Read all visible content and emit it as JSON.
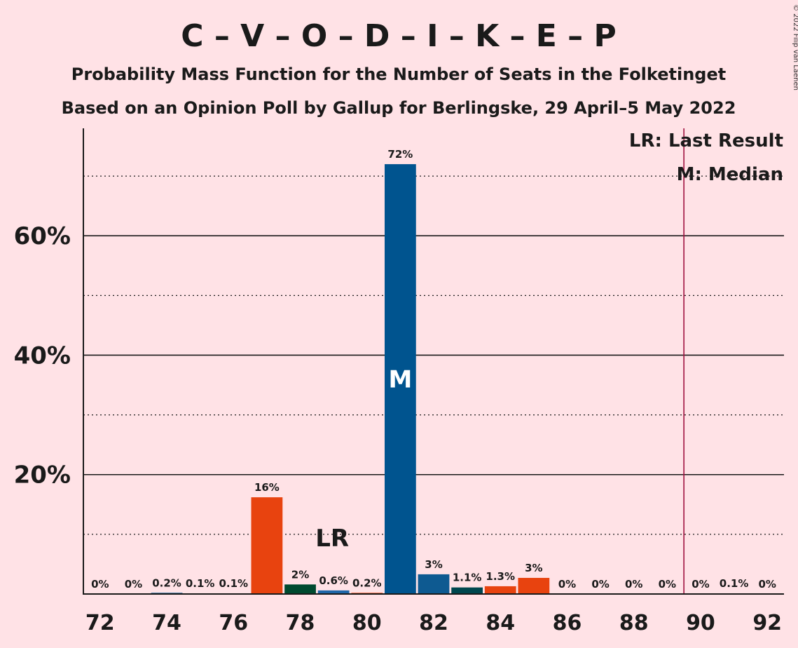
{
  "chart_data": {
    "type": "bar",
    "title": "C – V – O – D – I – K – E – P",
    "subtitle_line1": "Probability Mass Function for the Number of Seats in the Folketinget",
    "subtitle_line2": "Based on an Opinion Poll by Gallup for Berlingske, 29 April–5 May 2022",
    "copyright": "© 2022 Filip van Laenen",
    "x_ticks": [
      "72",
      "74",
      "76",
      "78",
      "80",
      "82",
      "84",
      "86",
      "88",
      "90",
      "92"
    ],
    "y_ticks": [
      "20%",
      "40%",
      "60%"
    ],
    "ylim": [
      0,
      78
    ],
    "xlim": [
      71.5,
      92.5
    ],
    "grid": true,
    "bars": [
      {
        "seats": 72,
        "value": 0,
        "label": "0%",
        "color": "#E8430F"
      },
      {
        "seats": 73,
        "value": 0,
        "label": "0%",
        "color": "#004A2F"
      },
      {
        "seats": 74,
        "value": 0.2,
        "label": "0.2%",
        "color": "#0E5A91"
      },
      {
        "seats": 75,
        "value": 0.1,
        "label": "0.1%",
        "color": "#E8430F"
      },
      {
        "seats": 76,
        "value": 0.1,
        "label": "0.1%",
        "color": "#004A2F"
      },
      {
        "seats": 77,
        "value": 16.2,
        "label": "16%",
        "color": "#E8430F"
      },
      {
        "seats": 78,
        "value": 1.6,
        "label": "2%",
        "color": "#004A2F"
      },
      {
        "seats": 79,
        "value": 0.6,
        "label": "0.6%",
        "color": "#1F66A8"
      },
      {
        "seats": 80,
        "value": 0.2,
        "label": "0.2%",
        "color": "#E8430F"
      },
      {
        "seats": 81,
        "value": 72,
        "label": "72%",
        "color": "#00548F"
      },
      {
        "seats": 82,
        "value": 3.3,
        "label": "3%",
        "color": "#0E5A91"
      },
      {
        "seats": 83,
        "value": 1.1,
        "label": "1.1%",
        "color": "#00474E"
      },
      {
        "seats": 84,
        "value": 1.3,
        "label": "1.3%",
        "color": "#E8430F"
      },
      {
        "seats": 85,
        "value": 2.7,
        "label": "3%",
        "color": "#E8430F"
      },
      {
        "seats": 86,
        "value": 0,
        "label": "0%",
        "color": "#E8430F"
      },
      {
        "seats": 87,
        "value": 0,
        "label": "0%",
        "color": "#E8430F"
      },
      {
        "seats": 88,
        "value": 0,
        "label": "0%",
        "color": "#E8430F"
      },
      {
        "seats": 89,
        "value": 0,
        "label": "0%",
        "color": "#E8430F"
      },
      {
        "seats": 90,
        "value": 0,
        "label": "0%",
        "color": "#E8430F"
      },
      {
        "seats": 91,
        "value": 0.1,
        "label": "0.1%",
        "color": "#0E5A91"
      },
      {
        "seats": 92,
        "value": 0,
        "label": "0%",
        "color": "#E8430F"
      }
    ],
    "median": {
      "seats": 81,
      "label": "M"
    },
    "last_result": {
      "seats": 79,
      "label": "LR"
    },
    "majority_line": {
      "seats": 89.5,
      "color": "#A0103F"
    },
    "legend": {
      "lr": "LR: Last Result",
      "median": "M: Median",
      "placement": "top-right"
    }
  }
}
